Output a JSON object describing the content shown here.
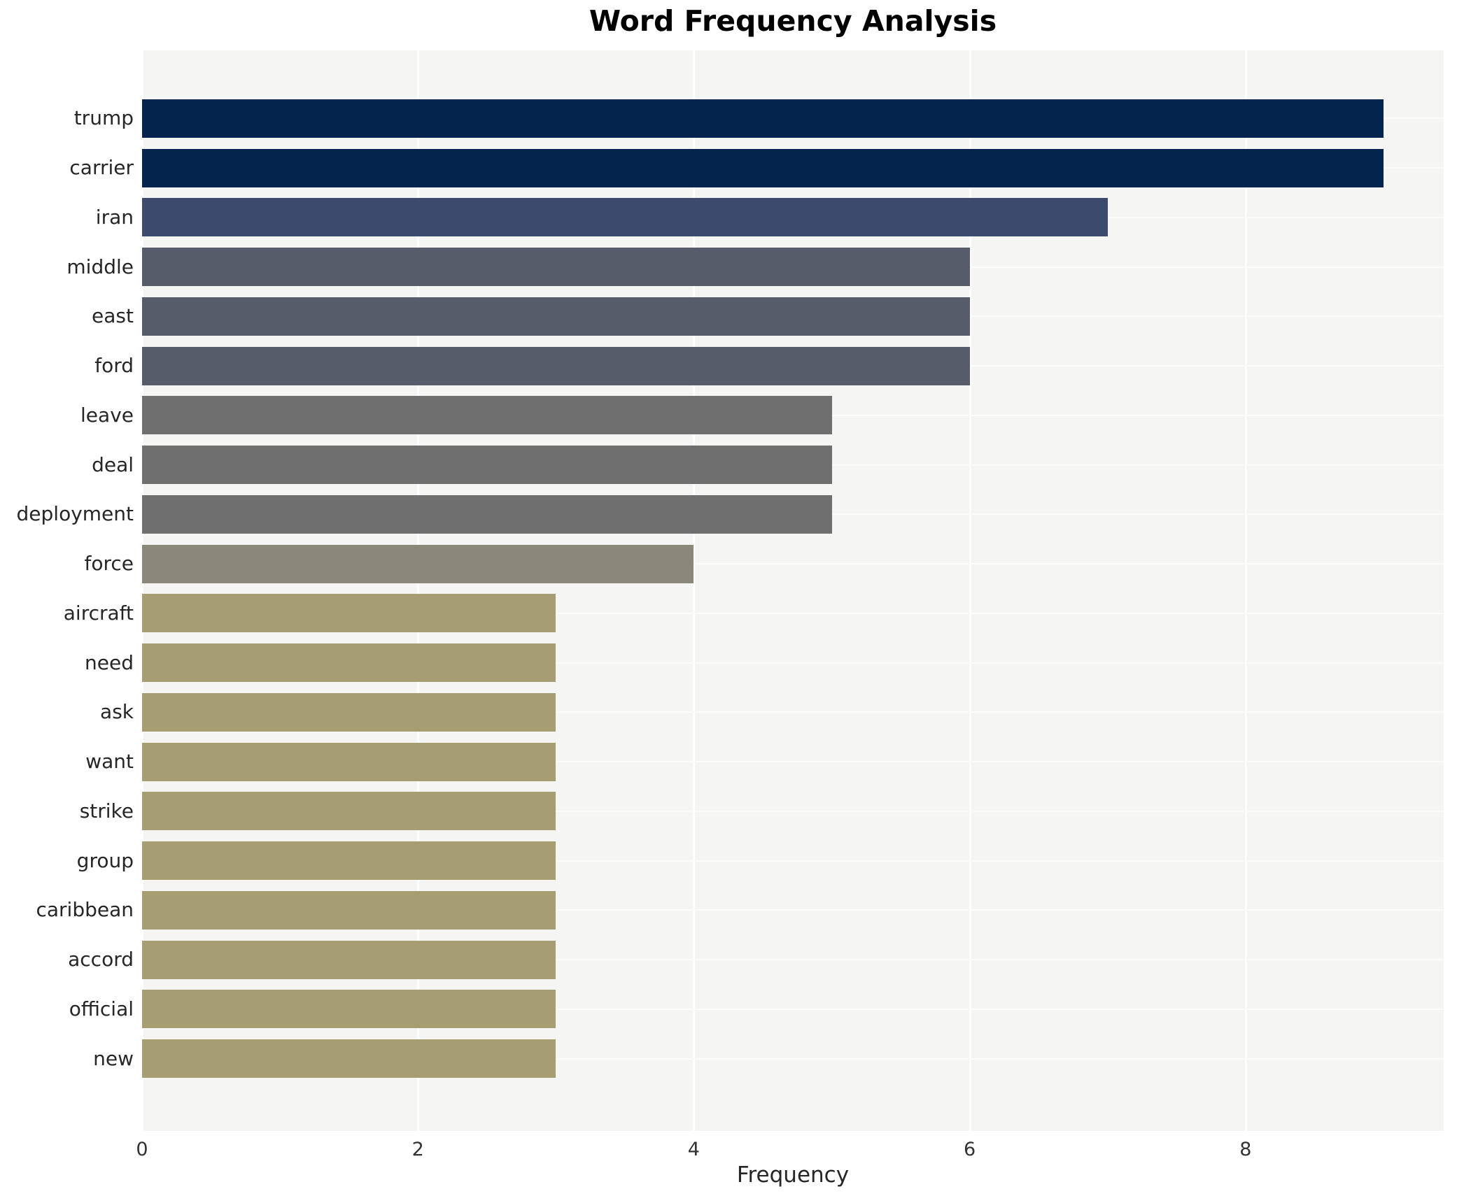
{
  "title": "Word Frequency Analysis",
  "xlabel": "Frequency",
  "style": {
    "figure_bg": "#ffffff",
    "plot_bg": "#f5f5f4",
    "grid_color_vertical": "#ffffff",
    "grid_color_horizontal": "#fbfbfa",
    "text_color": "#262626"
  },
  "chart_data": {
    "type": "bar",
    "orientation": "horizontal",
    "title": "Word Frequency Analysis",
    "xlabel": "Frequency",
    "ylabel": "",
    "legend": "none",
    "grid": true,
    "xlim": [
      0,
      9.44
    ],
    "xticks": [
      0,
      2,
      4,
      6,
      8
    ],
    "categories": [
      "trump",
      "carrier",
      "iran",
      "middle",
      "east",
      "ford",
      "leave",
      "deal",
      "deployment",
      "force",
      "aircraft",
      "need",
      "ask",
      "want",
      "strike",
      "group",
      "caribbean",
      "accord",
      "official",
      "new"
    ],
    "values": [
      9,
      9,
      7,
      6,
      6,
      6,
      5,
      5,
      5,
      4,
      3,
      3,
      3,
      3,
      3,
      3,
      3,
      3,
      3,
      3
    ],
    "bar_colors": [
      "#04234d",
      "#04234d",
      "#3c4a6d",
      "#575c6b",
      "#575c6b",
      "#575c6b",
      "#6f6f6f",
      "#6f6f6f",
      "#6f6f6f",
      "#8a8878",
      "#a69d73",
      "#a69d73",
      "#a69d73",
      "#a69d73",
      "#a69d73",
      "#a69d73",
      "#a69d73",
      "#a69d73",
      "#a69d73",
      "#a69d73"
    ]
  }
}
